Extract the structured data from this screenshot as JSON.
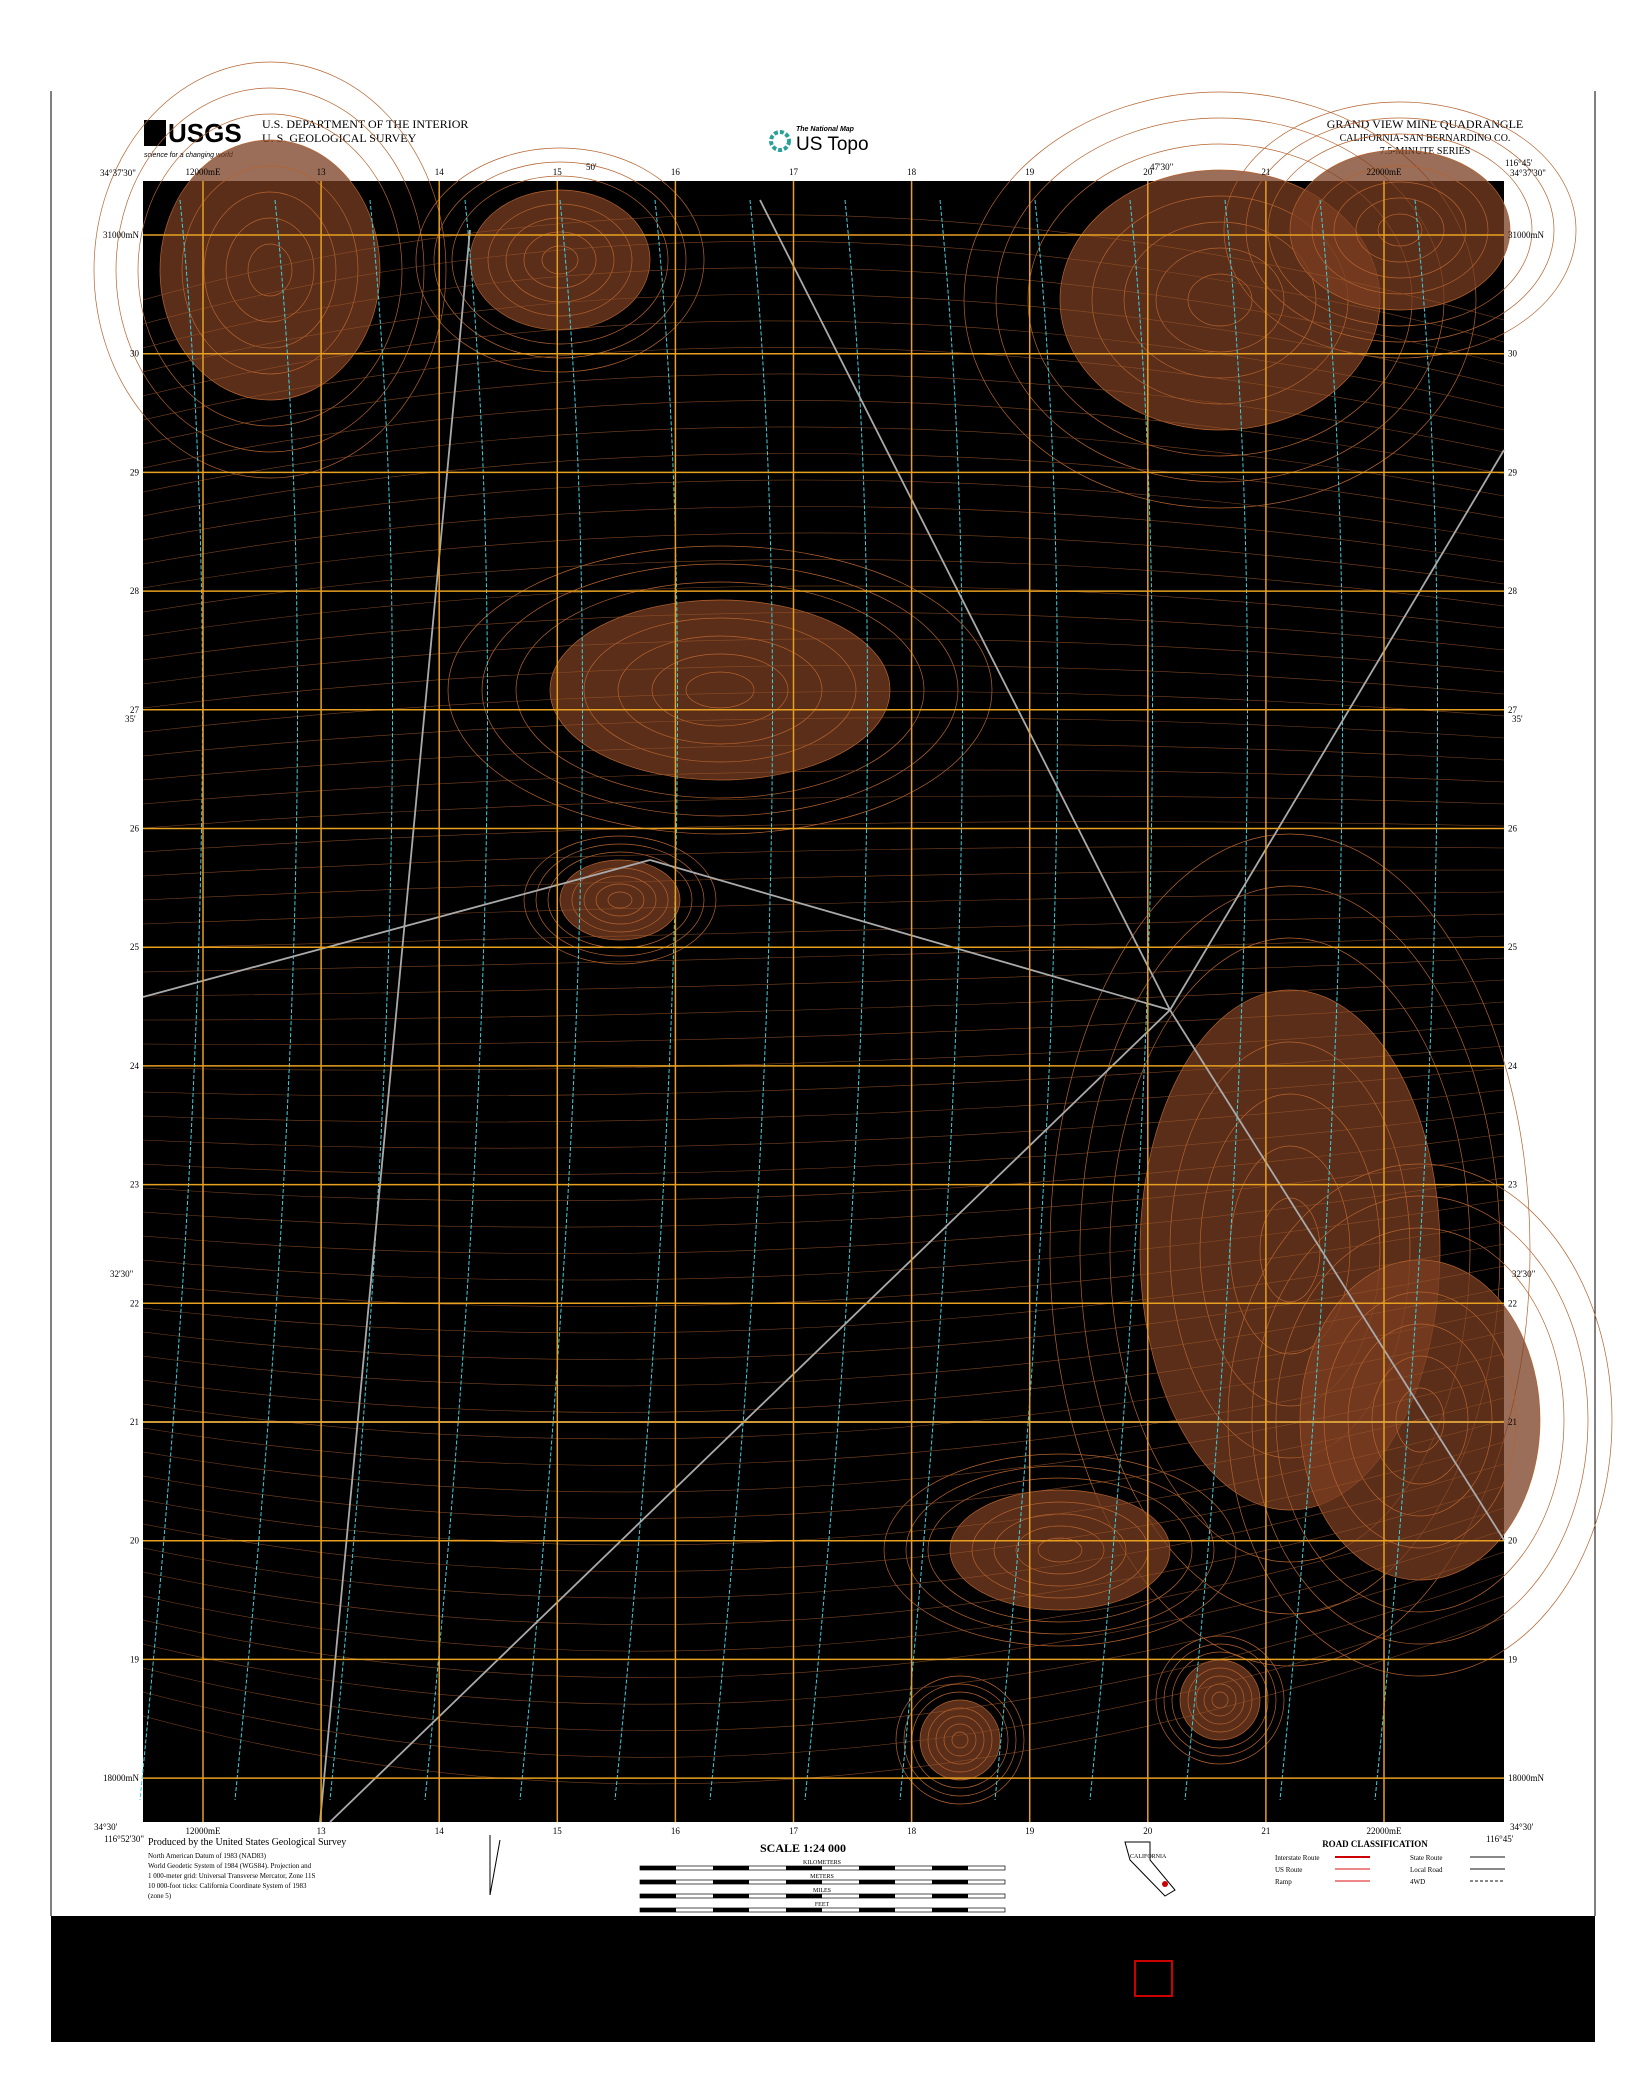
{
  "header": {
    "agency": "U.S. DEPARTMENT OF THE INTERIOR",
    "survey": "U. S. GEOLOGICAL SURVEY",
    "usgs_logo": "USGS",
    "usgs_tagline": "science for a changing world",
    "national_map": "The National Map",
    "us_topo": "US Topo",
    "title": "GRAND VIEW MINE QUADRANGLE",
    "subtitle": "CALIFORNIA-SAN BERNARDINO CO.",
    "series": "7.5-MINUTE SERIES"
  },
  "corners": {
    "top_left_lat": "34°37'30\"",
    "top_right_lat": "34°37'30\"",
    "top_right_lon": "116°45'",
    "bottom_left_lat": "34°30'",
    "bottom_left_lon": "116°52'30\"",
    "bottom_right_lat": "34°30'",
    "bottom_right_lon": "116°45'"
  },
  "graticule": {
    "top": [
      "50'",
      "47'30\""
    ],
    "side": [
      "35'",
      "32'30\""
    ]
  },
  "grid": {
    "eastings": [
      "12000mE",
      "13",
      "14",
      "15",
      "16",
      "17",
      "18",
      "19",
      "20",
      "21",
      "22000mE"
    ],
    "northings": [
      "31000mN",
      "30",
      "29",
      "28",
      "27",
      "26",
      "25",
      "24",
      "23",
      "22",
      "21",
      "20",
      "19",
      "18000mN"
    ]
  },
  "footer": {
    "credit": "Produced by the United States Geological Survey",
    "datum_lines": [
      "North American Datum of 1983 (NAD83)",
      "World Geodetic System of 1984 (WGS84). Projection and",
      "1 000-meter grid: Universal Transverse Mercator, Zone 11S",
      "10 000-foot ticks: California Coordinate System of 1983",
      "(zone 5)"
    ],
    "scale": "SCALE 1:24 000",
    "units": [
      "KILOMETERS",
      "METERS",
      "MILES",
      "FEET"
    ],
    "state": "CALIFORNIA",
    "road_title": "ROAD CLASSIFICATION",
    "roads": [
      "Interstate Route",
      "US Route",
      "Ramp",
      "State Route",
      "Local Road",
      "4WD"
    ]
  }
}
